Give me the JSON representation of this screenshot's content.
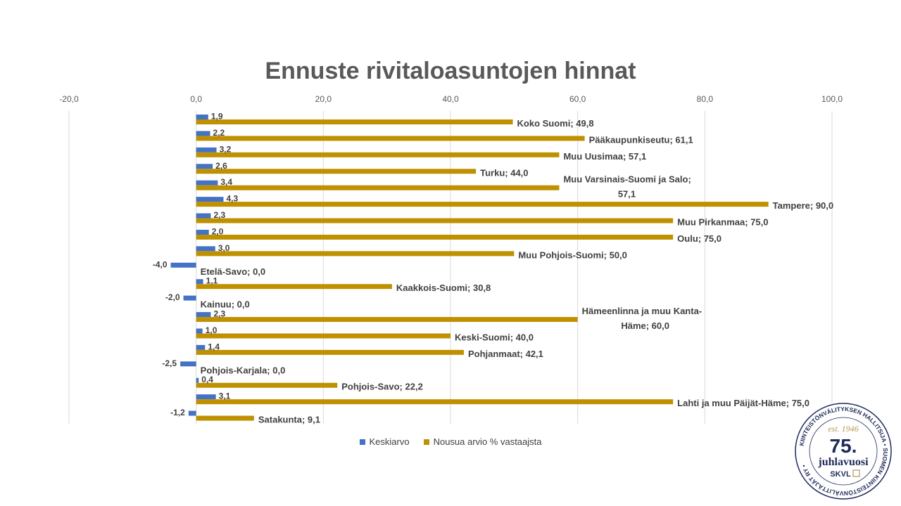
{
  "chart_data": {
    "type": "bar",
    "orientation": "horizontal",
    "title": "Ennuste rivitaloasuntojen hinnat",
    "xlim": [
      -20,
      100
    ],
    "x_ticks": [
      "-20,0",
      "0,0",
      "20,0",
      "40,0",
      "60,0",
      "80,0",
      "100,0"
    ],
    "grid": true,
    "legend_position": "bottom",
    "categories": [
      "Koko Suomi",
      "Pääkaupunkiseutu",
      "Muu Uusimaa",
      "Turku",
      "Muu Varsinais-Suomi ja Salo",
      "Tampere",
      "Muu Pirkanmaa",
      "Oulu",
      "Muu Pohjois-Suomi",
      "Etelä-Savo",
      "Kaakkois-Suomi",
      "Kainuu",
      "Hämeenlinna ja muu Kanta-Häme",
      "Keski-Suomi",
      "Pohjanmaat",
      "Pohjois-Karjala",
      "Pohjois-Savo",
      "Lahti ja muu Päijät-Häme",
      "Satakunta"
    ],
    "series": [
      {
        "name": "Keskiarvo",
        "color": "#4472C4",
        "values": [
          1.9,
          2.2,
          3.2,
          2.6,
          3.4,
          4.3,
          2.3,
          2.0,
          3.0,
          -4.0,
          1.1,
          -2.0,
          2.3,
          1.0,
          1.4,
          -2.5,
          0.4,
          3.1,
          -1.2
        ],
        "labels": [
          "1,9",
          "2,2",
          "3,2",
          "2,6",
          "3,4",
          "4,3",
          "2,3",
          "2,0",
          "3,0",
          "-4,0",
          "1,1",
          "-2,0",
          "2,3",
          "1,0",
          "1,4",
          "-2,5",
          "0,4",
          "3,1",
          "-1,2"
        ]
      },
      {
        "name": "Nousua arvio % vastaajsta",
        "color": "#BF9000",
        "values": [
          49.8,
          61.1,
          57.1,
          44.0,
          57.1,
          90.0,
          75.0,
          75.0,
          50.0,
          0.0,
          30.8,
          0.0,
          60.0,
          40.0,
          42.1,
          0.0,
          22.2,
          75.0,
          9.1
        ],
        "labels": [
          "Koko Suomi; 49,8",
          "Pääkaupunkiseutu; 61,1",
          "Muu Uusimaa; 57,1",
          "Turku; 44,0",
          "Muu Varsinais-Suomi ja Salo;",
          "Tampere; 90,0",
          "Muu Pirkanmaa; 75,0",
          "Oulu; 75,0",
          "Muu Pohjois-Suomi; 50,0",
          "Etelä-Savo; 0,0",
          "Kaakkois-Suomi; 30,8",
          "Kainuu; 0,0",
          "Hämeenlinna ja muu Kanta-",
          "Keski-Suomi; 40,0",
          "Pohjanmaat; 42,1",
          "Pohjois-Karjala; 0,0",
          "Pohjois-Savo; 22,2",
          "Lahti ja muu Päijät-Häme; 75,0",
          "Satakunta; 9,1"
        ],
        "labels_line2": [
          "",
          "",
          "",
          "",
          "57,1",
          "",
          "",
          "",
          "",
          "",
          "",
          "",
          "Häme; 60,0",
          "",
          "",
          "",
          "",
          "",
          ""
        ]
      }
    ]
  },
  "seal": {
    "ring_text": "KIINTEISTÖNVÄLITYKSEN HALLITSIJA • SUOMEN KIINTEISTÖNVÄLITTÄJÄT RY •",
    "est": "est. 1946",
    "number": "75.",
    "word": "juhlavuosi",
    "brand": "SKVL"
  }
}
